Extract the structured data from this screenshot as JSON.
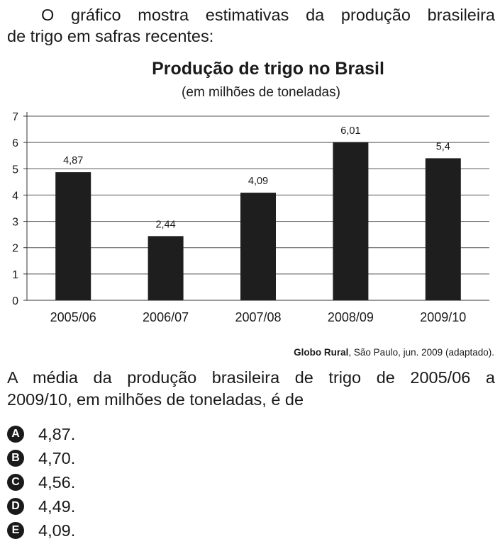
{
  "intro": {
    "line1": "O gráfico mostra estimativas da produção brasileira",
    "line2": "de trigo em safras recentes:"
  },
  "chart_data": {
    "type": "bar",
    "title": "Produção de trigo no Brasil",
    "subtitle": "(em milhões de toneladas)",
    "categories": [
      "2005/06",
      "2006/07",
      "2007/08",
      "2008/09",
      "2009/10"
    ],
    "values": [
      4.87,
      2.44,
      4.09,
      6.01,
      5.4
    ],
    "value_labels": [
      "4,87",
      "2,44",
      "4,09",
      "6,01",
      "5,4"
    ],
    "y_ticks": [
      "0",
      "1",
      "2",
      "3",
      "4",
      "5",
      "6",
      "7"
    ],
    "ylim": [
      0,
      7
    ],
    "grid": true,
    "bar_color": "#1e1e1e"
  },
  "source": {
    "bold": "Globo Rural",
    "rest": ", São Paulo, jun. 2009 (adaptado)."
  },
  "question": {
    "line1": "A média da produção brasileira de trigo de 2005/06 a",
    "line2": "2009/10, em milhões de toneladas, é de"
  },
  "options": [
    {
      "letter": "A",
      "text": "4,87."
    },
    {
      "letter": "B",
      "text": "4,70."
    },
    {
      "letter": "C",
      "text": "4,56."
    },
    {
      "letter": "D",
      "text": "4,49."
    },
    {
      "letter": "E",
      "text": "4,09."
    }
  ]
}
